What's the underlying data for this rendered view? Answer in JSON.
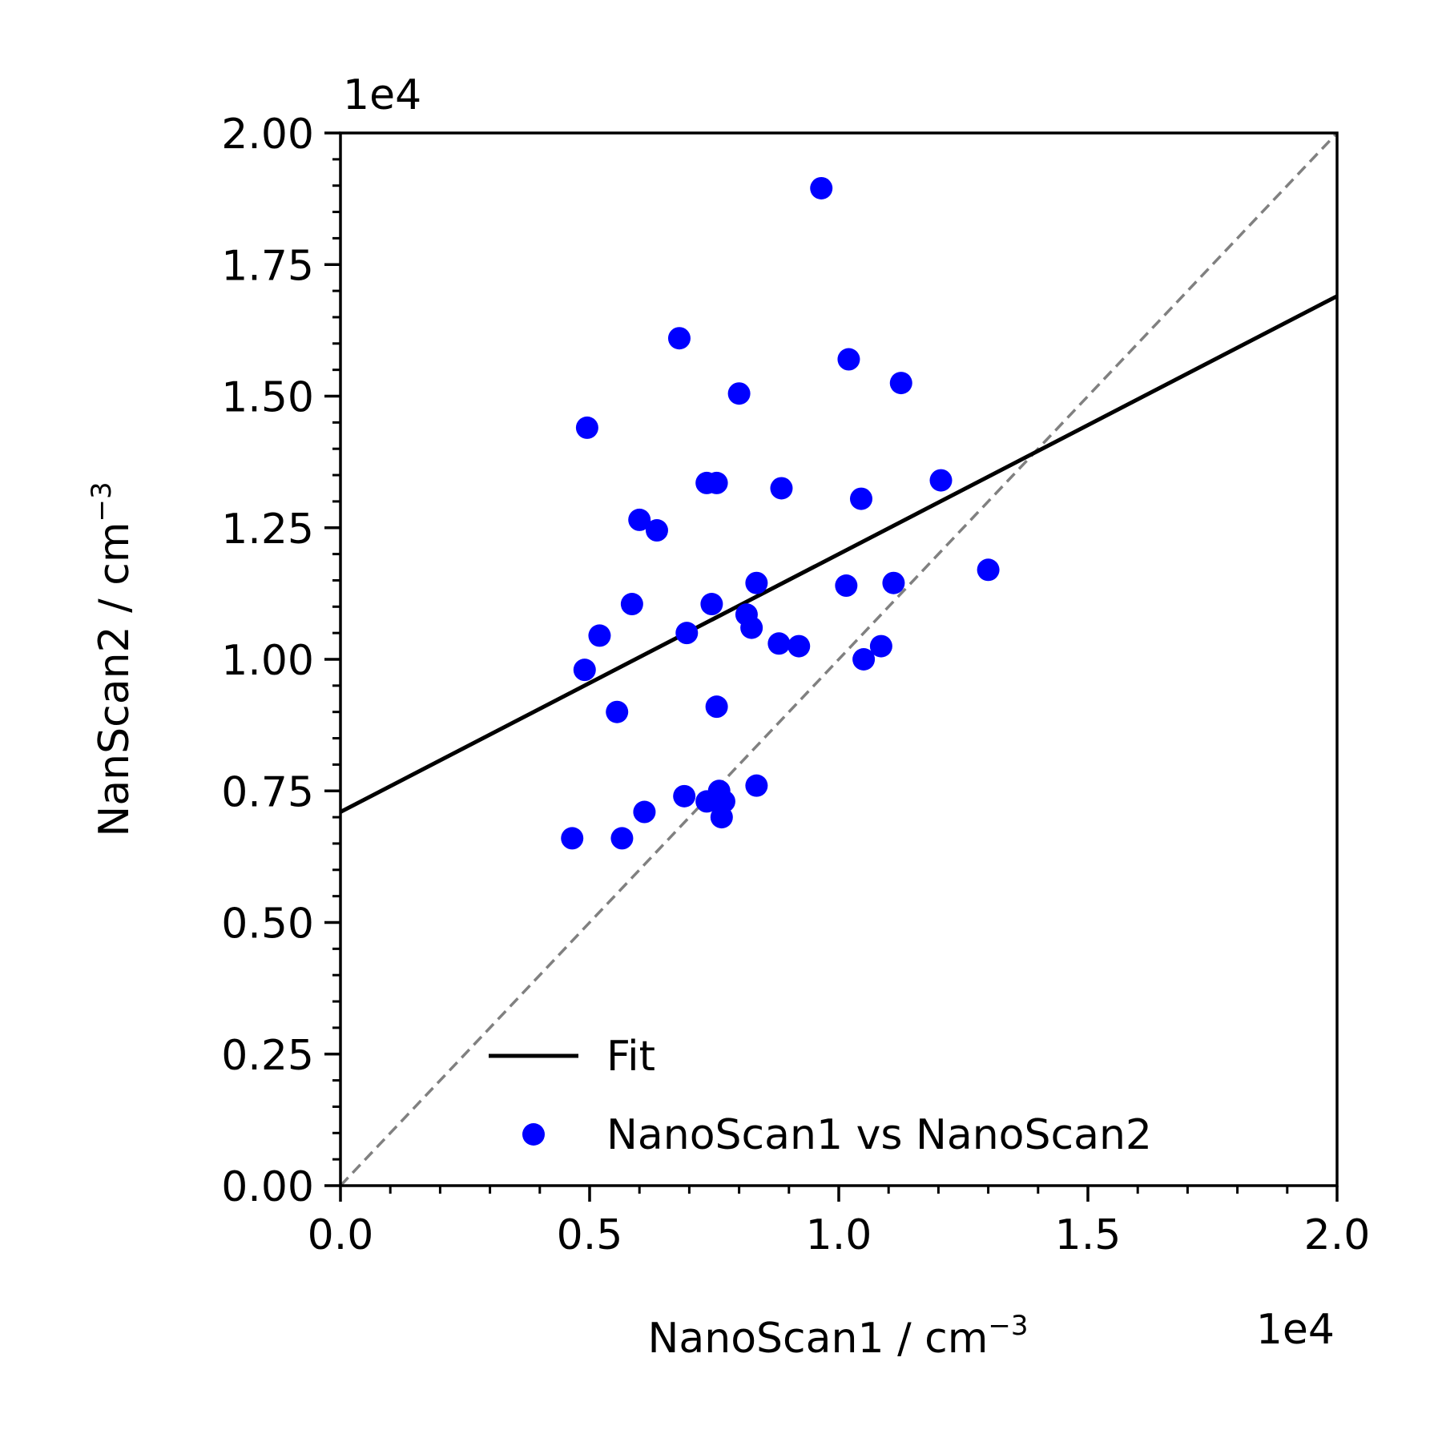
{
  "chart_data": {
    "type": "scatter",
    "xlabel": "NanoScan1 / cm",
    "xlabel_sup": "−3",
    "ylabel": "NanScan2 / cm",
    "ylabel_sup": "−3",
    "xlim": [
      0,
      20000
    ],
    "ylim": [
      0,
      20000
    ],
    "x_offset_label": "1e4",
    "y_offset_label": "1e4",
    "x_ticks": [
      0,
      5000,
      10000,
      15000,
      20000
    ],
    "x_tick_labels": [
      "0.0",
      "0.5",
      "1.0",
      "1.5",
      "2.0"
    ],
    "y_ticks": [
      0,
      2500,
      5000,
      7500,
      10000,
      12500,
      15000,
      17500,
      20000
    ],
    "y_tick_labels": [
      "0.00",
      "0.25",
      "0.50",
      "0.75",
      "1.00",
      "1.25",
      "1.50",
      "1.75",
      "2.00"
    ],
    "x_minor_step": 1000,
    "y_minor_step": 500,
    "grid": false,
    "legend_position": "lower-right",
    "series": [
      {
        "name": "NanoScan1 vs NanoScan2",
        "type": "scatter",
        "color": "#0000ff",
        "points": [
          [
            9650,
            18950
          ],
          [
            6800,
            16100
          ],
          [
            10200,
            15700
          ],
          [
            8000,
            15050
          ],
          [
            11250,
            15250
          ],
          [
            4950,
            14400
          ],
          [
            7350,
            13350
          ],
          [
            7550,
            13350
          ],
          [
            8850,
            13250
          ],
          [
            12050,
            13400
          ],
          [
            10450,
            13050
          ],
          [
            6000,
            12650
          ],
          [
            6350,
            12450
          ],
          [
            8350,
            11450
          ],
          [
            10150,
            11400
          ],
          [
            11100,
            11450
          ],
          [
            13000,
            11700
          ],
          [
            5850,
            11050
          ],
          [
            7450,
            11050
          ],
          [
            8150,
            10850
          ],
          [
            8250,
            10600
          ],
          [
            5200,
            10450
          ],
          [
            6950,
            10500
          ],
          [
            8800,
            10300
          ],
          [
            9200,
            10250
          ],
          [
            10850,
            10250
          ],
          [
            10500,
            10000
          ],
          [
            4900,
            9800
          ],
          [
            5550,
            9000
          ],
          [
            7550,
            9100
          ],
          [
            7600,
            7500
          ],
          [
            8350,
            7600
          ],
          [
            6900,
            7400
          ],
          [
            7350,
            7300
          ],
          [
            7700,
            7300
          ],
          [
            7650,
            7000
          ],
          [
            6100,
            7100
          ],
          [
            4650,
            6600
          ],
          [
            5650,
            6600
          ]
        ]
      },
      {
        "name": "Fit",
        "type": "line",
        "color": "#000000",
        "x": [
          0,
          20000
        ],
        "y": [
          7100,
          16900
        ]
      },
      {
        "type": "line",
        "style": "dashed",
        "color": "#808080",
        "x": [
          0,
          20000
        ],
        "y": [
          0,
          20000
        ]
      }
    ]
  }
}
